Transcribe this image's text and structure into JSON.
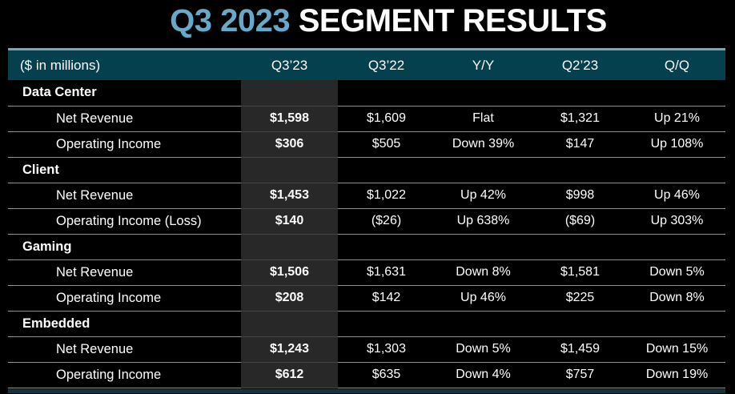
{
  "title": {
    "accent": "Q3 2023",
    "rest": " SEGMENT RESULTS"
  },
  "colors": {
    "background": "#000000",
    "title_accent": "#66A9C9",
    "header_bg": "#05404E",
    "header_top_border": "#7EA4B0",
    "highlight_column_bg": "#282828",
    "row_separator": "#909090",
    "bottom_bar": "#16333B",
    "text": "#FFFFFF"
  },
  "table": {
    "unit_label": "($ in millions)",
    "columns": [
      "Q3’23",
      "Q3’22",
      "Y/Y",
      "Q2’23",
      "Q/Q"
    ],
    "highlighted_column": "Q3’23",
    "sections": [
      {
        "name": "Data Center",
        "rows": [
          {
            "label": "Net Revenue",
            "values": [
              "$1,598",
              "$1,609",
              "Flat",
              "$1,321",
              "Up 21%"
            ]
          },
          {
            "label": "Operating Income",
            "values": [
              "$306",
              "$505",
              "Down 39%",
              "$147",
              "Up 108%"
            ]
          }
        ]
      },
      {
        "name": "Client",
        "rows": [
          {
            "label": "Net Revenue",
            "values": [
              "$1,453",
              "$1,022",
              "Up 42%",
              "$998",
              "Up 46%"
            ]
          },
          {
            "label": "Operating Income (Loss)",
            "values": [
              "$140",
              "($26)",
              "Up 638%",
              "($69)",
              "Up 303%"
            ]
          }
        ]
      },
      {
        "name": "Gaming",
        "rows": [
          {
            "label": "Net Revenue",
            "values": [
              "$1,506",
              "$1,631",
              "Down 8%",
              "$1,581",
              "Down 5%"
            ]
          },
          {
            "label": "Operating Income",
            "values": [
              "$208",
              "$142",
              "Up 46%",
              "$225",
              "Down 8%"
            ]
          }
        ]
      },
      {
        "name": "Embedded",
        "rows": [
          {
            "label": "Net Revenue",
            "values": [
              "$1,243",
              "$1,303",
              "Down 5%",
              "$1,459",
              "Down 15%"
            ]
          },
          {
            "label": "Operating Income",
            "values": [
              "$612",
              "$635",
              "Down 4%",
              "$757",
              "Down 19%"
            ]
          }
        ]
      }
    ]
  }
}
